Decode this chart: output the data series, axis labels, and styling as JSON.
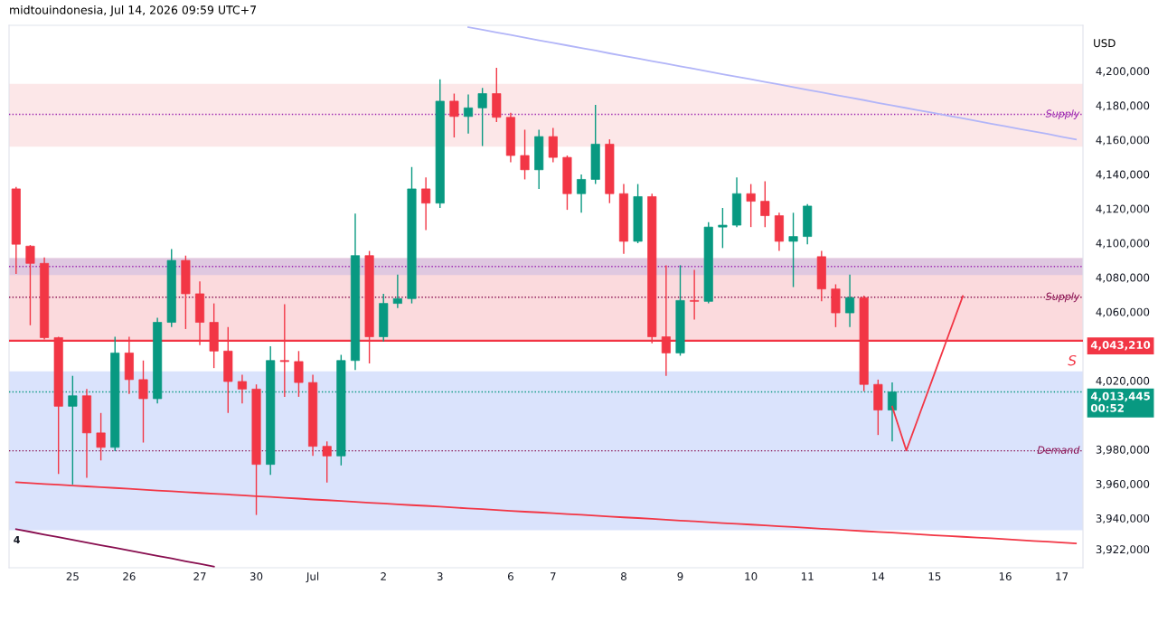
{
  "chart_data": {
    "type": "candlestick",
    "title": "midtouindonesia, Jul 14, 2026 09:59 UTC+7",
    "ylabel": "USD",
    "categories": [
      null,
      null,
      null,
      null,
      "25",
      null,
      null,
      null,
      "26",
      null,
      null,
      null,
      null,
      "27",
      null,
      null,
      null,
      "30",
      null,
      null,
      null,
      "Jul",
      null,
      null,
      null,
      null,
      "2",
      null,
      null,
      null,
      "3",
      null,
      null,
      null,
      null,
      "6",
      null,
      null,
      "7",
      null,
      null,
      null,
      null,
      "8",
      null,
      null,
      null,
      "9",
      null,
      null,
      null,
      null,
      "10",
      null,
      null,
      null,
      "11",
      null,
      null,
      null,
      null,
      "14",
      null,
      null,
      null,
      "15",
      null,
      null,
      null,
      null,
      "16",
      null,
      null,
      null,
      "17",
      null
    ],
    "ohlc": [
      [
        4131500,
        4132600,
        4082100,
        4099300
      ],
      [
        4098200,
        4098800,
        4052200,
        4088200
      ],
      [
        4088200,
        4091600,
        4043900,
        4045000
      ],
      [
        4045000,
        4045500,
        3965700,
        4005100
      ],
      [
        4005100,
        4022800,
        3959600,
        4011200
      ],
      [
        4011200,
        4015100,
        3963500,
        3989600
      ],
      [
        3989600,
        4001200,
        3973600,
        3981200
      ],
      [
        3981200,
        4045500,
        3979000,
        4036100
      ],
      [
        4036100,
        4045500,
        4012300,
        4020600
      ],
      [
        4020600,
        4031700,
        3984000,
        4009500
      ],
      [
        4009500,
        4056600,
        4006700,
        4053900
      ],
      [
        4053900,
        4096500,
        4051100,
        4089900
      ],
      [
        4089900,
        4092700,
        4050000,
        4070500
      ],
      [
        4070500,
        4077700,
        4040600,
        4053900
      ],
      [
        4053900,
        4064900,
        4027300,
        4037200
      ],
      [
        4037200,
        4051100,
        4001200,
        4019500
      ],
      [
        4019500,
        4023400,
        4006700,
        4015100
      ],
      [
        4015100,
        4017800,
        3941900,
        3971300
      ],
      [
        3971300,
        4040000,
        3965200,
        4031700
      ],
      [
        4031700,
        4064400,
        4010600,
        4031100
      ],
      [
        4031100,
        4037200,
        4010600,
        4018900
      ],
      [
        4018900,
        4023400,
        3976200,
        3981800
      ],
      [
        3981800,
        3984600,
        3960700,
        3976200
      ],
      [
        3976200,
        4035000,
        3970700,
        4031700
      ],
      [
        4031700,
        4117100,
        4026200,
        4092700
      ],
      [
        4092700,
        4095400,
        4030000,
        4045500
      ],
      [
        4045500,
        4070500,
        4042800,
        4064900
      ],
      [
        4064900,
        4081600,
        4062200,
        4067700
      ],
      [
        4067700,
        4144200,
        4064900,
        4131500
      ],
      [
        4131500,
        4138100,
        4107600,
        4123200
      ],
      [
        4123200,
        4195200,
        4120400,
        4182500
      ],
      [
        4182500,
        4186900,
        4161400,
        4173600
      ],
      [
        4173600,
        4186400,
        4163600,
        4178600
      ],
      [
        4178600,
        4190200,
        4156400,
        4186900
      ],
      [
        4186900,
        4201900,
        4170300,
        4173100
      ],
      [
        4173100,
        4175800,
        4147000,
        4150900
      ],
      [
        4150900,
        4165900,
        4137000,
        4142600
      ],
      [
        4142600,
        4165900,
        4131500,
        4161900
      ],
      [
        4161900,
        4167000,
        4147000,
        4149800
      ],
      [
        4149800,
        4150900,
        4119300,
        4128700
      ],
      [
        4128700,
        4139800,
        4117600,
        4137000
      ],
      [
        4137000,
        4180300,
        4134300,
        4157500
      ],
      [
        4157500,
        4160300,
        4123200,
        4128700
      ],
      [
        4128700,
        4134300,
        4093800,
        4101000
      ],
      [
        4101000,
        4134300,
        4099900,
        4127000
      ],
      [
        4127000,
        4128700,
        4041700,
        4045500
      ],
      [
        4045500,
        4087100,
        4022800,
        4036100
      ],
      [
        4036100,
        4087100,
        4034500,
        4066600
      ],
      [
        4066600,
        4084400,
        4055500,
        4066100
      ],
      [
        4066100,
        4112100,
        4064900,
        4109300
      ],
      [
        4109300,
        4120400,
        4097100,
        4110400
      ],
      [
        4110400,
        4138100,
        4109300,
        4128700
      ],
      [
        4128700,
        4134300,
        4109300,
        4124300
      ],
      [
        4124300,
        4135900,
        4109300,
        4115900
      ],
      [
        4115900,
        4117600,
        4095400,
        4101000
      ],
      [
        4101000,
        4117600,
        4074400,
        4103800
      ],
      [
        4103800,
        4122600,
        4099300,
        4121500
      ],
      [
        4092100,
        4095400,
        4066100,
        4073300
      ],
      [
        4073300,
        4076000,
        4051100,
        4059400
      ],
      [
        4059400,
        4081600,
        4051100,
        4068300
      ],
      [
        4068300,
        4069400,
        4013900,
        4017800
      ],
      [
        4017800,
        4020600,
        3988400,
        4002900
      ],
      [
        4002900,
        4018900,
        3984600,
        4013445
      ],
      null,
      null,
      null,
      null,
      null,
      null,
      null,
      null,
      null,
      null,
      null,
      null,
      null
    ],
    "colors": [
      "#f23645",
      "#f23645",
      "#f23645",
      "#f23645",
      "#089981",
      "#f23645",
      "#f23645",
      "#089981",
      "#f23645",
      "#f23645",
      "#089981",
      "#089981",
      "#f23645",
      "#f23645",
      "#f23645",
      "#f23645",
      "#f23645",
      "#f23645",
      "#089981",
      "#f23645",
      "#f23645",
      "#f23645",
      "#f23645",
      "#089981",
      "#089981",
      "#f23645",
      "#089981",
      "#089981",
      "#089981",
      "#f23645",
      "#089981",
      "#f23645",
      "#089981",
      "#089981",
      "#f23645",
      "#f23645",
      "#f23645",
      "#089981",
      "#f23645",
      "#f23645",
      "#089981",
      "#089981",
      "#f23645",
      "#f23645",
      "#089981",
      "#f23645",
      "#f23645",
      "#089981",
      "#f23645",
      "#089981",
      "#089981",
      "#089981",
      "#f23645",
      "#f23645",
      "#f23645",
      "#089981",
      "#089981",
      "#f23645",
      "#f23645",
      "#089981",
      "#f23645",
      "#f23645",
      "#089981",
      null,
      null,
      null,
      null,
      null,
      null,
      null,
      null,
      null,
      null,
      null,
      null,
      null
    ],
    "series": [
      {
        "type": "line",
        "color": "#f23645",
        "values": [
          3960900,
          3960400,
          3959900,
          3959500,
          3959000,
          3958500,
          3958000,
          3957600,
          3957100,
          3956600,
          3956100,
          3955700,
          3955200,
          3954700,
          3954200,
          3953800,
          3953300,
          3952800,
          3952400,
          3951900,
          3951400,
          3950900,
          3950500,
          3950000,
          3949500,
          3949000,
          3948600,
          3948100,
          3947600,
          3947200,
          3946700,
          3946200,
          3945700,
          3945300,
          3944800,
          3944300,
          3943800,
          3943400,
          3942900,
          3942400,
          3942000,
          3941500,
          3941000,
          3940500,
          3940100,
          3939600,
          3939100,
          3938600,
          3938200,
          3937700,
          3937200,
          3936800,
          3936300,
          3935800,
          3935300,
          3934900,
          3934400,
          3933900,
          3933500,
          3933000,
          3932500,
          3932000,
          3931600,
          3931100,
          3930600,
          3930100,
          3929700,
          3929200,
          3928700,
          3928300,
          3927800,
          3927300,
          3926800,
          3926400,
          3925900,
          3925400
        ]
      },
      {
        "type": "line",
        "color": "#b2b5f8",
        "values": [
          null,
          null,
          null,
          null,
          null,
          null,
          null,
          null,
          null,
          null,
          null,
          null,
          null,
          null,
          null,
          null,
          null,
          null,
          null,
          null,
          null,
          null,
          null,
          null,
          null,
          null,
          null,
          null,
          null,
          null,
          null,
          null,
          4225500,
          4224000,
          4222500,
          4221000,
          4219400,
          4217900,
          4216400,
          4214900,
          4213400,
          4211900,
          4210300,
          4208800,
          4207300,
          4205800,
          4204300,
          4202800,
          4201300,
          4199700,
          4198200,
          4196700,
          4195200,
          4193700,
          4192200,
          4190600,
          4189100,
          4187600,
          4186100,
          4184600,
          4183100,
          4181500,
          4180000,
          4178500,
          4177000,
          4175500,
          4174000,
          4172500,
          4170900,
          4169400,
          4167900,
          4166400,
          4164900,
          4163400,
          4161800,
          4160300
        ]
      },
      {
        "type": "line",
        "color": "#880e4f",
        "values": [
          3933600,
          3932100,
          3930500,
          3929000,
          3927400,
          3925900,
          3924300,
          3922800,
          3921200,
          3919700,
          3918100,
          3916600,
          3915000,
          3913500,
          3911900,
          null,
          null,
          null,
          null,
          null,
          null,
          null,
          null,
          null,
          null,
          null,
          null,
          null,
          null,
          null,
          null,
          null,
          null,
          null,
          null,
          null,
          null,
          null,
          null,
          null,
          null,
          null,
          null,
          null,
          null,
          null,
          null,
          null,
          null,
          null,
          null,
          null,
          null,
          null,
          null,
          null,
          null,
          null,
          null,
          null,
          null,
          null,
          null,
          null,
          null,
          null,
          null,
          null,
          null,
          null,
          null,
          null,
          null,
          null,
          null,
          null
        ]
      },
      {
        "type": "line",
        "color": "#f23645",
        "values": [
          null,
          null,
          null,
          null,
          null,
          null,
          null,
          null,
          null,
          null,
          null,
          null,
          null,
          null,
          null,
          null,
          null,
          null,
          null,
          null,
          null,
          null,
          null,
          null,
          null,
          null,
          null,
          null,
          null,
          null,
          null,
          null,
          null,
          null,
          null,
          null,
          null,
          null,
          null,
          null,
          null,
          null,
          null,
          null,
          null,
          null,
          null,
          null,
          null,
          null,
          null,
          null,
          null,
          null,
          null,
          null,
          null,
          null,
          null,
          null,
          null,
          null,
          4004900,
          3979400,
          4001900,
          4024300,
          4046800,
          4069200,
          null,
          null,
          null,
          null,
          null,
          null,
          null,
          null
        ]
      }
    ],
    "bands": [
      {
        "axis": "y",
        "from": 4156000,
        "to": 4192500,
        "color": "#fce4e6"
      },
      {
        "axis": "y",
        "from": 4043210,
        "to": 4091300,
        "color": "#fbd6d9"
      },
      {
        "axis": "y",
        "from": 4081400,
        "to": 4091300,
        "color": "#dcc5e0"
      },
      {
        "axis": "y",
        "from": 3933000,
        "to": 4025400,
        "color": "#d6e0fc"
      }
    ],
    "ref_lines": [
      {
        "axis": "y",
        "value": 4174800,
        "label": "Supply",
        "color": "#9c27b0",
        "line_style": "dotted"
      },
      {
        "axis": "y",
        "value": 4086400,
        "color": "#9c27b0",
        "line_style": "dotted"
      },
      {
        "axis": "y",
        "value": 4068500,
        "label": "Supply",
        "color": "#880e4f",
        "line_style": "dotted"
      },
      {
        "axis": "y",
        "value": 3979200,
        "label": "Demand",
        "color": "#880e4f",
        "line_style": "dotted"
      },
      {
        "axis": "y",
        "value": 4043210,
        "label": "4,043,210",
        "color": "#f23645",
        "line_style": "solid"
      },
      {
        "axis": "y",
        "value": 4013445,
        "label": "4,013,445\n00:52",
        "color": "#089981",
        "line_style": "dotted"
      }
    ],
    "annotations": [
      "4",
      "S"
    ],
    "ylim": [
      3911200,
      4226600
    ],
    "yticks": [
      {
        "value": 4200000,
        "label": "4,200,000"
      },
      {
        "value": 4180000,
        "label": "4,180,000"
      },
      {
        "value": 4160000,
        "label": "4,160,000"
      },
      {
        "value": 4140000,
        "label": "4,140,000"
      },
      {
        "value": 4120000,
        "label": "4,120,000"
      },
      {
        "value": 4100000,
        "label": "4,100,000"
      },
      {
        "value": 4080000,
        "label": "4,080,000"
      },
      {
        "value": 4060000,
        "label": "4,060,000"
      },
      {
        "value": 4020000,
        "label": "4,020,000"
      },
      {
        "value": 3980000,
        "label": "3,980,000"
      },
      {
        "value": 3960000,
        "label": "3,960,000"
      },
      {
        "value": 3940000,
        "label": "3,940,000"
      },
      {
        "value": 3922000,
        "label": "3,922,000"
      }
    ],
    "grid": false,
    "legend": false
  }
}
